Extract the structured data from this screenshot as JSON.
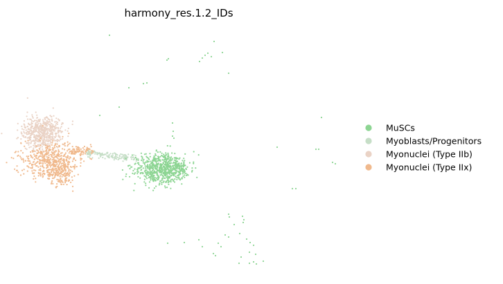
{
  "chart_data": {
    "type": "scatter",
    "title": "harmony_res.1.2_IDs",
    "xlabel": "",
    "ylabel": "",
    "axes_visible": false,
    "grid": false,
    "legend_position": "right",
    "series": [
      {
        "name": "MuSCs",
        "color": "#8dd593"
      },
      {
        "name": "Myoblasts/Progenitors",
        "color": "#c6dec7"
      },
      {
        "name": "Myonuclei (Type IIb)",
        "color": "#ead3c6"
      },
      {
        "name": "Myonuclei (Type IIx)",
        "color": "#f0b98d"
      }
    ]
  }
}
